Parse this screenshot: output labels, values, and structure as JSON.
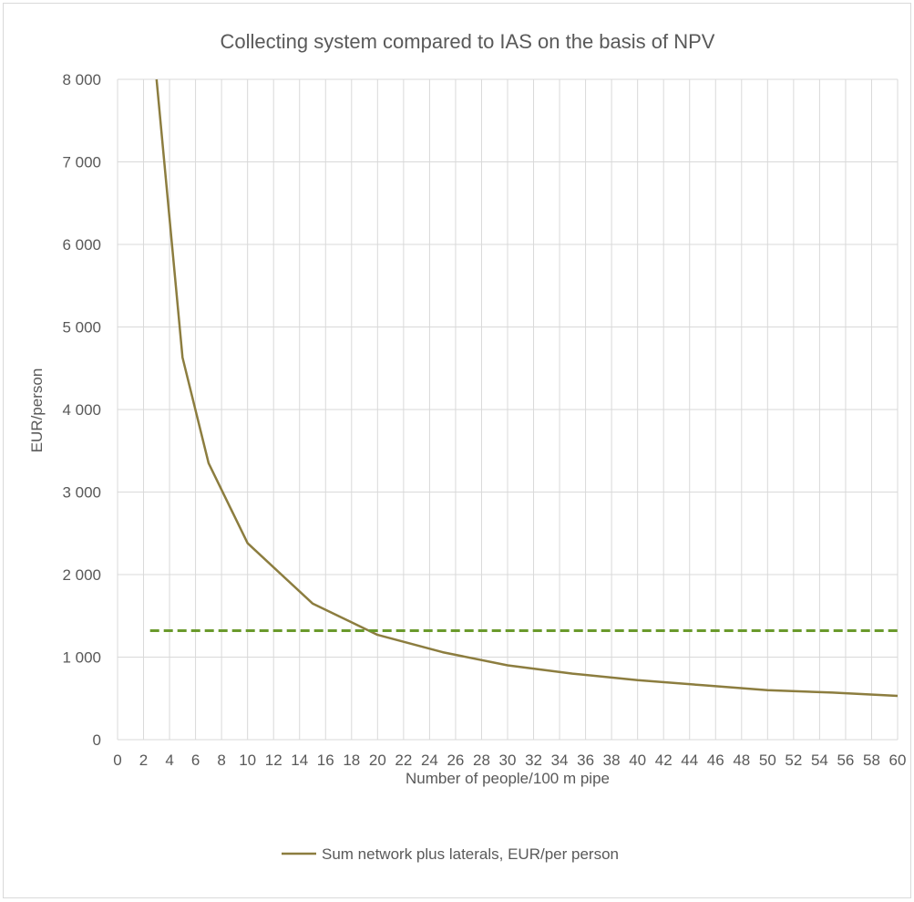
{
  "chart_data": {
    "type": "line",
    "title": "Collecting system compared to IAS on the basis of NPV",
    "xlabel": "Number of people/100 m pipe",
    "ylabel": "EUR/person",
    "xlim": [
      0,
      60
    ],
    "ylim": [
      0,
      8000
    ],
    "x_tick_labels": [
      "0",
      "2",
      "4",
      "6",
      "8",
      "10",
      "12",
      "14",
      "16",
      "18",
      "20",
      "22",
      "24",
      "26",
      "28",
      "30",
      "32",
      "34",
      "36",
      "38",
      "40",
      "42",
      "44",
      "46",
      "48",
      "50",
      "52",
      "54",
      "56",
      "58",
      "60"
    ],
    "y_tick_labels": [
      "0",
      "1 000",
      "2 000",
      "3 000",
      "4 000",
      "5 000",
      "6 000",
      "7 000",
      "8 000"
    ],
    "grid": true,
    "legend_position": "bottom",
    "series": [
      {
        "name": "Sum network plus laterals, EUR/per person",
        "color": "#8c7d3f",
        "style": "solid",
        "x": [
          3,
          5,
          7,
          10,
          15,
          20,
          25,
          30,
          35,
          40,
          45,
          50,
          55,
          60
        ],
        "y": [
          8000,
          4630,
          3350,
          2380,
          1650,
          1270,
          1060,
          900,
          800,
          720,
          660,
          600,
          570,
          530
        ]
      },
      {
        "color": "#6a9a2c",
        "style": "dashed",
        "x": [
          2.5,
          60
        ],
        "y": [
          1320,
          1320
        ]
      }
    ]
  }
}
